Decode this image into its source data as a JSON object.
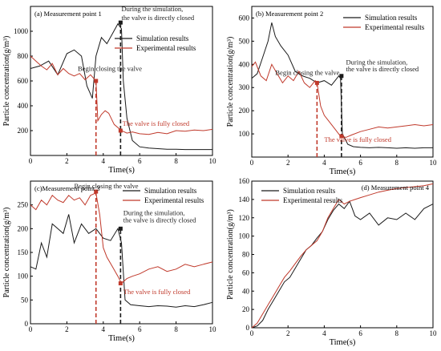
{
  "colors": {
    "sim": "#1a1a1a",
    "exp": "#c0392b",
    "annot": "#c0392b",
    "axis": "#000000"
  },
  "chart_data": [
    {
      "type": "line",
      "panel_label": "(a) Measurement point 1",
      "xlabel": "Time(s)",
      "ylabel": "Particle concentration(g/m³)",
      "xlim": [
        0,
        10
      ],
      "ylim": [
        0,
        1200
      ],
      "xticks": [
        "0",
        "2",
        "4",
        "6",
        "8",
        "10"
      ],
      "yticks": [
        "200",
        "400",
        "600",
        "800",
        "1000"
      ],
      "ytick_values": [
        200,
        400,
        600,
        800,
        1000
      ],
      "legend": {
        "position": "upper-right",
        "sim": "Simulation results",
        "exp": "Experimental results"
      },
      "series": [
        {
          "name": "Simulation results",
          "role": "sim",
          "x": [
            0,
            0.5,
            1.0,
            1.5,
            2.0,
            2.4,
            2.8,
            3.1,
            3.4,
            3.6,
            3.9,
            4.2,
            4.5,
            4.8,
            5.0,
            5.1,
            5.3,
            5.6,
            6.0,
            6.5,
            7.0,
            7.5,
            8.0,
            8.5,
            9.0,
            9.5,
            10
          ],
          "y": [
            700,
            720,
            760,
            650,
            820,
            850,
            800,
            560,
            460,
            800,
            950,
            900,
            980,
            1060,
            1020,
            600,
            300,
            120,
            70,
            60,
            55,
            50,
            50,
            48,
            48,
            48,
            48
          ]
        },
        {
          "name": "Experimental results",
          "role": "exp",
          "x": [
            0,
            0.3,
            0.6,
            0.9,
            1.2,
            1.5,
            1.8,
            2.1,
            2.4,
            2.7,
            3.0,
            3.3,
            3.6,
            3.7,
            3.9,
            4.1,
            4.3,
            4.6,
            5.0,
            5.3,
            5.6,
            6.0,
            6.5,
            7.0,
            7.5,
            8.0,
            8.5,
            9.0,
            9.5,
            10
          ],
          "y": [
            800,
            760,
            720,
            690,
            740,
            650,
            700,
            660,
            640,
            660,
            610,
            650,
            600,
            280,
            330,
            360,
            340,
            250,
            200,
            180,
            190,
            175,
            170,
            185,
            175,
            200,
            195,
            205,
            200,
            210
          ]
        }
      ],
      "markers": [
        {
          "x": 3.6,
          "y": 600,
          "color": "exp"
        },
        {
          "x": 4.95,
          "y": 1070,
          "color": "sim"
        },
        {
          "x": 4.95,
          "y": 200,
          "color": "exp"
        }
      ],
      "vlines": [
        {
          "x": 3.6,
          "y": 600,
          "color": "exp"
        },
        {
          "x": 4.95,
          "y": 1070,
          "color": "sim"
        }
      ],
      "annotations": [
        {
          "text": "Begin closing the valve",
          "x": 2.6,
          "y": 680,
          "color": "sim"
        },
        {
          "text": "During the simulation,",
          "x": 5.0,
          "y": 1160,
          "color": "sim"
        },
        {
          "text": "the valve is directly closed",
          "x": 5.0,
          "y": 1090,
          "color": "sim"
        },
        {
          "text": "The valve is fully closed",
          "x": 5.05,
          "y": 240,
          "color": "annot"
        }
      ]
    },
    {
      "type": "line",
      "panel_label": "(b) Measurement point 2",
      "xlabel": "Time(s)",
      "ylabel": "Particle concentration(g/m³)",
      "xlim": [
        0,
        10
      ],
      "ylim": [
        0,
        650
      ],
      "xticks": [
        "0",
        "2",
        "4",
        "6",
        "8",
        "10"
      ],
      "yticks": [
        "100",
        "200",
        "300",
        "400",
        "500",
        "600"
      ],
      "ytick_values": [
        100,
        200,
        300,
        400,
        500,
        600
      ],
      "legend": {
        "position": "upper-right",
        "sim": "Simulation results",
        "exp": "Experimental results"
      },
      "series": [
        {
          "name": "Simulation results",
          "role": "sim",
          "x": [
            0,
            0.3,
            0.6,
            0.9,
            1.1,
            1.3,
            1.6,
            2.0,
            2.4,
            2.8,
            3.2,
            3.6,
            4.0,
            4.4,
            4.8,
            4.9,
            5.0,
            5.3,
            5.6,
            6.0,
            6.5,
            7.0,
            7.5,
            8.0,
            8.5,
            9.0,
            9.5,
            10
          ],
          "y": [
            340,
            360,
            430,
            500,
            580,
            520,
            480,
            440,
            370,
            350,
            340,
            320,
            330,
            310,
            350,
            340,
            100,
            55,
            45,
            42,
            40,
            42,
            40,
            38,
            40,
            38,
            40,
            40
          ]
        },
        {
          "name": "Experimental results",
          "role": "exp",
          "x": [
            0,
            0.2,
            0.5,
            0.8,
            1.1,
            1.4,
            1.7,
            2.0,
            2.3,
            2.6,
            2.9,
            3.2,
            3.5,
            3.6,
            3.8,
            4.0,
            4.3,
            4.6,
            4.9,
            5.2,
            5.5,
            6.0,
            6.5,
            7.0,
            7.5,
            8.0,
            8.5,
            9.0,
            9.5,
            10
          ],
          "y": [
            390,
            410,
            350,
            330,
            400,
            360,
            320,
            350,
            330,
            370,
            320,
            300,
            330,
            320,
            220,
            180,
            150,
            120,
            90,
            85,
            95,
            110,
            120,
            130,
            125,
            130,
            135,
            140,
            135,
            140
          ]
        }
      ],
      "markers": [
        {
          "x": 3.6,
          "y": 320,
          "color": "exp"
        },
        {
          "x": 4.95,
          "y": 350,
          "color": "sim"
        },
        {
          "x": 4.95,
          "y": 90,
          "color": "exp"
        }
      ],
      "vlines": [
        {
          "x": 3.6,
          "y": 320,
          "color": "exp"
        },
        {
          "x": 4.95,
          "y": 350,
          "color": "sim"
        }
      ],
      "annotations": [
        {
          "text": "Begin closing the valve",
          "x": 1.3,
          "y": 355,
          "color": "sim"
        },
        {
          "text": "During the simulation,",
          "x": 5.2,
          "y": 400,
          "color": "sim"
        },
        {
          "text": "the valve is directly closed",
          "x": 5.2,
          "y": 370,
          "color": "sim"
        },
        {
          "text": "The valve is fully closed",
          "x": 4.0,
          "y": 65,
          "color": "annot"
        }
      ]
    },
    {
      "type": "line",
      "panel_label": "(c)Measurement point 3",
      "xlabel": "Time(s)",
      "ylabel": "Particle concentration(g/m³)",
      "xlim": [
        0,
        10
      ],
      "ylim": [
        0,
        300
      ],
      "xticks": [
        "0",
        "2",
        "4",
        "6",
        "8",
        "10"
      ],
      "yticks": [
        "0",
        "50",
        "100",
        "150",
        "200",
        "250"
      ],
      "ytick_values": [
        0,
        50,
        100,
        150,
        200,
        250
      ],
      "legend": {
        "position": "upper-right",
        "sim": "Simulation results",
        "exp": "Experimental results"
      },
      "series": [
        {
          "name": "Simulation results",
          "role": "sim",
          "x": [
            0,
            0.3,
            0.6,
            0.9,
            1.2,
            1.5,
            1.8,
            2.1,
            2.4,
            2.8,
            3.2,
            3.6,
            4.0,
            4.4,
            4.8,
            5.0,
            5.2,
            5.5,
            6.0,
            6.5,
            7.0,
            7.5,
            8.0,
            8.5,
            9.0,
            9.5,
            10
          ],
          "y": [
            120,
            115,
            170,
            140,
            210,
            200,
            190,
            230,
            170,
            210,
            190,
            200,
            180,
            175,
            200,
            170,
            50,
            40,
            38,
            36,
            38,
            37,
            35,
            38,
            36,
            40,
            45
          ]
        },
        {
          "name": "Experimental results",
          "role": "exp",
          "x": [
            0,
            0.3,
            0.6,
            0.9,
            1.2,
            1.5,
            1.8,
            2.1,
            2.4,
            2.7,
            3.0,
            3.3,
            3.6,
            3.8,
            4.0,
            4.2,
            4.5,
            4.8,
            5.0,
            5.3,
            5.6,
            6.0,
            6.5,
            7.0,
            7.5,
            8.0,
            8.5,
            9.0,
            9.5,
            10
          ],
          "y": [
            250,
            240,
            260,
            250,
            270,
            260,
            255,
            270,
            260,
            265,
            250,
            270,
            275,
            230,
            160,
            140,
            120,
            100,
            85,
            95,
            100,
            105,
            115,
            120,
            110,
            115,
            125,
            120,
            125,
            130
          ]
        }
      ],
      "markers": [
        {
          "x": 3.6,
          "y": 278,
          "color": "exp"
        },
        {
          "x": 4.95,
          "y": 200,
          "color": "sim"
        },
        {
          "x": 4.95,
          "y": 85,
          "color": "exp"
        }
      ],
      "vlines": [
        {
          "x": 3.6,
          "y": 278,
          "color": "exp"
        },
        {
          "x": 4.95,
          "y": 200,
          "color": "sim"
        }
      ],
      "annotations": [
        {
          "text": "Begin closing the valve",
          "x": 2.4,
          "y": 285,
          "color": "sim"
        },
        {
          "text": "During the simulation,",
          "x": 5.1,
          "y": 228,
          "color": "sim"
        },
        {
          "text": "the valve is directly closed",
          "x": 5.1,
          "y": 213,
          "color": "sim"
        },
        {
          "text": "The valve is fully closed",
          "x": 5.1,
          "y": 62,
          "color": "annot"
        }
      ]
    },
    {
      "type": "line",
      "panel_label": "(d) Measurement point 4",
      "xlabel": "Time(s)",
      "ylabel": "Particle concentration(g/m³)",
      "xlim": [
        0,
        10
      ],
      "ylim": [
        0,
        160
      ],
      "xticks": [
        "0",
        "2",
        "4",
        "6",
        "8",
        "10"
      ],
      "yticks": [
        "0",
        "20",
        "40",
        "60",
        "80",
        "100",
        "120",
        "140",
        "160"
      ],
      "ytick_values": [
        0,
        20,
        40,
        60,
        80,
        100,
        120,
        140,
        160
      ],
      "legend": {
        "position": "upper-left",
        "sim": "Simulation results",
        "exp": "Experimental results"
      },
      "series": [
        {
          "name": "Simulation results",
          "role": "sim",
          "x": [
            0,
            0.3,
            0.6,
            0.9,
            1.2,
            1.5,
            1.8,
            2.1,
            2.4,
            2.7,
            3.0,
            3.3,
            3.6,
            3.9,
            4.2,
            4.5,
            4.8,
            5.1,
            5.4,
            5.7,
            6.0,
            6.5,
            7.0,
            7.5,
            8.0,
            8.5,
            9.0,
            9.5,
            10
          ],
          "y": [
            0,
            2,
            8,
            20,
            30,
            40,
            50,
            55,
            65,
            75,
            85,
            90,
            98,
            105,
            118,
            128,
            135,
            130,
            138,
            122,
            118,
            125,
            112,
            120,
            118,
            125,
            118,
            130,
            135
          ]
        },
        {
          "name": "Experimental results",
          "role": "exp",
          "x": [
            0,
            0.3,
            0.6,
            0.9,
            1.2,
            1.5,
            1.8,
            2.1,
            2.4,
            2.7,
            3.0,
            3.3,
            3.6,
            3.9,
            4.2,
            4.5,
            4.8,
            5.1,
            5.4,
            5.7,
            6.0,
            6.5,
            7.0,
            7.5,
            8.0,
            8.5,
            9.0,
            9.5,
            10
          ],
          "y": [
            0,
            5,
            15,
            25,
            35,
            45,
            55,
            62,
            70,
            78,
            85,
            90,
            95,
            105,
            120,
            130,
            140,
            135,
            138,
            140,
            142,
            145,
            148,
            150,
            152,
            153,
            154,
            155,
            157
          ]
        }
      ],
      "markers": [],
      "vlines": [],
      "annotations": []
    }
  ]
}
